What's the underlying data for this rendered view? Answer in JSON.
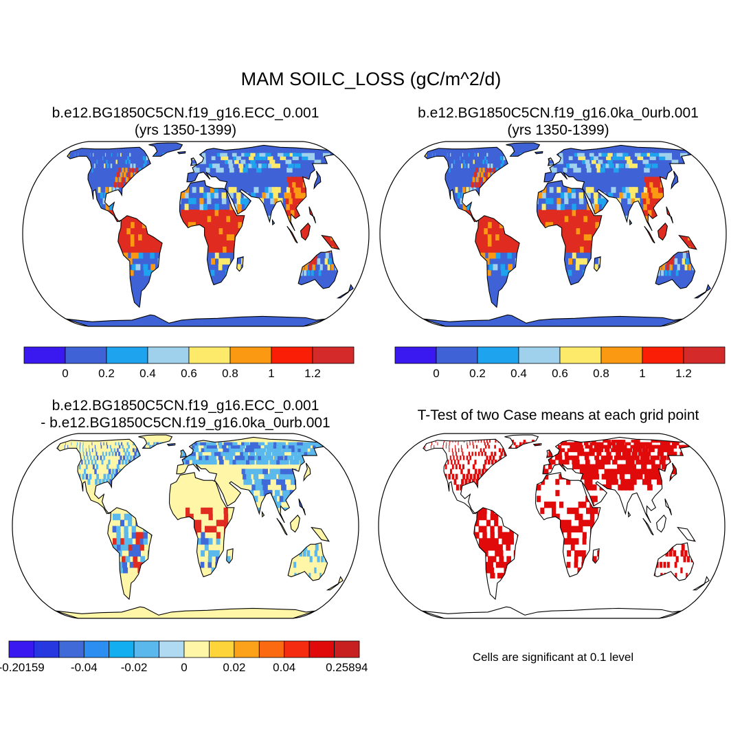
{
  "main_title": "MAM SOILC_LOSS (gC/m^2/d)",
  "panels": [
    {
      "title_line1": "b.e12.BG1850C5CN.f19_g16.ECC_0.001",
      "title_line2": "(yrs 1350-1399)"
    },
    {
      "title_line1": "b.e12.BG1850C5CN.f19_g16.0ka_0urb.001",
      "title_line2": "(yrs 1350-1399)"
    },
    {
      "title_line1": "b.e12.BG1850C5CN.f19_g16.ECC_0.001",
      "title_line2": "- b.e12.BG1850C5CN.f19_g16.0ka_0urb.001"
    },
    {
      "title_line1": "T-Test of two Case means at each grid point",
      "title_line2": ""
    }
  ],
  "colorbars": {
    "absolute": {
      "colors": [
        "#3a18f0",
        "#3f63d6",
        "#1ea3ee",
        "#9fd0ec",
        "#fde96a",
        "#fb9a12",
        "#fb1e06",
        "#d42a2a"
      ],
      "labels": [
        "0",
        "0.2",
        "0.4",
        "0.6",
        "0.8",
        "1",
        "1.2"
      ]
    },
    "difference": {
      "colors": [
        "#3a18f0",
        "#2838e0",
        "#3f6ad8",
        "#2c8ef0",
        "#12aef0",
        "#5ab8ec",
        "#b0daf2",
        "#fff6a8",
        "#fdd43a",
        "#fba21a",
        "#fb6a10",
        "#f62c10",
        "#e00a0a",
        "#c82020"
      ],
      "labels": [
        "-0.20159",
        "-0.04",
        "-0.02",
        "0",
        "0.02",
        "0.04",
        "0.25894"
      ]
    }
  },
  "note": "Cells are significant at 0.1 level",
  "region_colors": {
    "ocean": "#ffffff",
    "coast": "#000000",
    "abs_background": "#3f63d6",
    "abs_tropics": "#e02c20",
    "abs_subtropics": "#fb9a12",
    "abs_transition": "#fde96a",
    "abs_light": "#9fd0ec",
    "abs_mid": "#1ea3ee",
    "diff_neutral": "#fff6a8",
    "diff_blue": "#5ab8ec",
    "diff_deep_blue": "#3f6ad8",
    "diff_red": "#e02c20",
    "ttest_significant": "#e00a0a"
  }
}
